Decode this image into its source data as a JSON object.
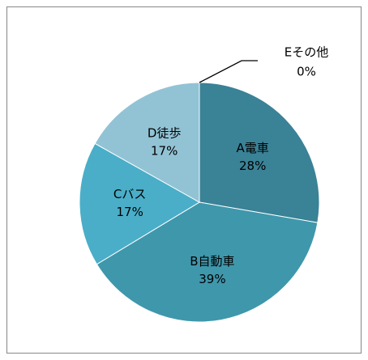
{
  "chart_data": {
    "type": "pie",
    "categories": [
      "A電車",
      "B自動車",
      "Cバス",
      "D徒歩",
      "Eその他"
    ],
    "values": [
      28,
      39,
      17,
      17,
      0
    ],
    "value_labels": [
      "28%",
      "39%",
      "17%",
      "17%",
      "0%"
    ],
    "colors": [
      "#3a8296",
      "#3f97ac",
      "#4aaec8",
      "#92c3d5",
      "#b7d7e4"
    ]
  }
}
